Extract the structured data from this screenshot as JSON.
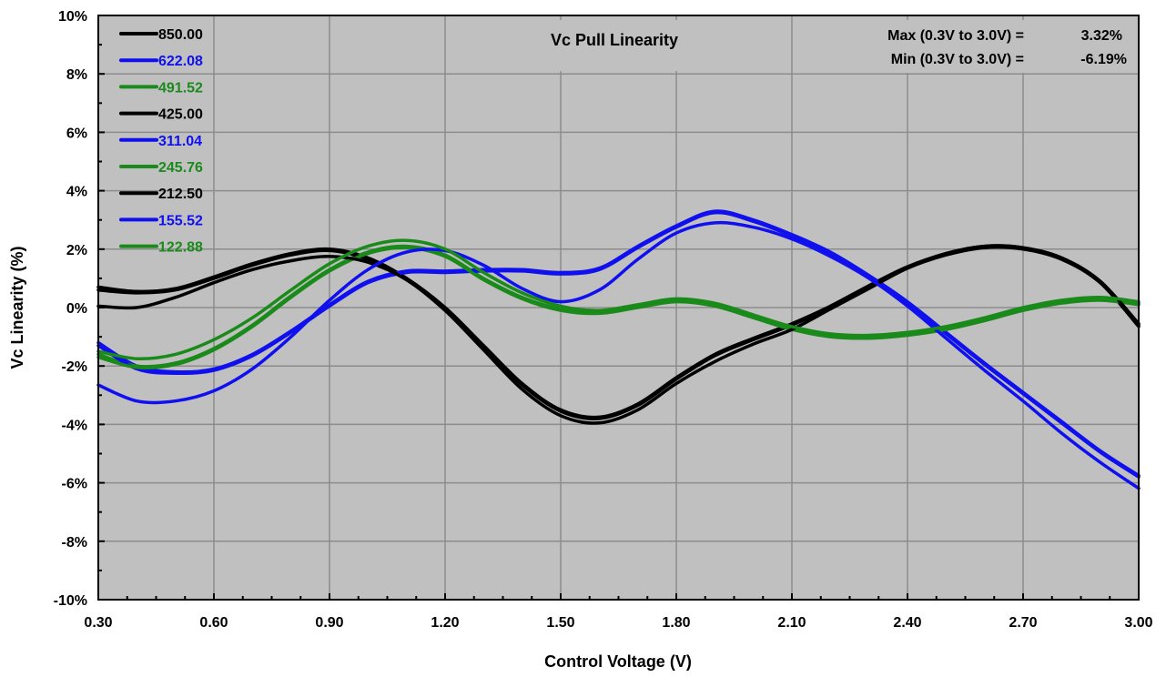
{
  "chart_data": {
    "type": "line",
    "title": "Vc Pull Linearity",
    "xlabel": "Control Voltage (V)",
    "ylabel": "Vc Linearity (%)",
    "xlim": [
      0.3,
      3.0
    ],
    "ylim": [
      -10,
      10
    ],
    "x_ticks": [
      "0.30",
      "0.60",
      "0.90",
      "1.20",
      "1.50",
      "1.80",
      "2.10",
      "2.40",
      "2.70",
      "3.00"
    ],
    "y_ticks": [
      "10%",
      "8%",
      "6%",
      "4%",
      "2%",
      "0%",
      "-2%",
      "-4%",
      "-6%",
      "-8%",
      "-10%"
    ],
    "grid": true,
    "legend_position": "top-left",
    "annotations": {
      "max_label": "Max (0.3V to 3.0V) =",
      "max_value": "3.32%",
      "min_label": "Min (0.3V to 3.0V) =",
      "min_value": "-6.19%"
    },
    "colors": {
      "plot_bg": "#c0c0c0",
      "black": "#000000",
      "blue": "#1010ee",
      "green": "#1a8a1a",
      "grid": "#8c8c8c"
    },
    "x": [
      0.3,
      0.4,
      0.5,
      0.6,
      0.7,
      0.8,
      0.9,
      1.0,
      1.1,
      1.2,
      1.3,
      1.4,
      1.5,
      1.6,
      1.7,
      1.8,
      1.9,
      2.0,
      2.1,
      2.2,
      2.3,
      2.4,
      2.5,
      2.6,
      2.7,
      2.8,
      2.9,
      3.0
    ],
    "series": [
      {
        "name": "850.00",
        "color": "#000000",
        "values": [
          0.7,
          0.55,
          0.65,
          1.05,
          1.5,
          1.85,
          2.0,
          1.7,
          1.0,
          0.0,
          -1.3,
          -2.6,
          -3.5,
          -3.75,
          -3.3,
          -2.4,
          -1.6,
          -1.05,
          -0.55,
          0.05,
          0.75,
          1.4,
          1.85,
          2.1,
          2.05,
          1.7,
          0.9,
          -0.6
        ]
      },
      {
        "name": "622.08",
        "color": "#1010ee",
        "values": [
          -1.2,
          -2.0,
          -2.2,
          -2.1,
          -1.6,
          -0.8,
          0.1,
          0.9,
          1.25,
          1.25,
          1.3,
          1.3,
          1.2,
          1.35,
          2.1,
          2.8,
          3.3,
          3.0,
          2.5,
          1.9,
          1.1,
          0.2,
          -0.85,
          -1.9,
          -2.9,
          -3.9,
          -4.9,
          -5.75
        ]
      },
      {
        "name": "491.52",
        "color": "#1a8a1a",
        "values": [
          -1.6,
          -2.0,
          -1.9,
          -1.4,
          -0.6,
          0.4,
          1.3,
          1.9,
          2.1,
          1.8,
          1.0,
          0.35,
          -0.05,
          -0.15,
          0.05,
          0.25,
          0.1,
          -0.3,
          -0.7,
          -0.95,
          -1.0,
          -0.9,
          -0.7,
          -0.4,
          -0.05,
          0.2,
          0.3,
          0.15
        ]
      },
      {
        "name": "425.00",
        "color": "#000000",
        "values": [
          0.6,
          0.5,
          0.6,
          1.0,
          1.45,
          1.8,
          1.95,
          1.65,
          0.95,
          -0.05,
          -1.35,
          -2.65,
          -3.55,
          -3.8,
          -3.35,
          -2.45,
          -1.65,
          -1.1,
          -0.6,
          0.0,
          0.7,
          1.35,
          1.8,
          2.05,
          2.0,
          1.65,
          0.85,
          -0.65
        ]
      },
      {
        "name": "311.04",
        "color": "#1010ee",
        "values": [
          -1.3,
          -2.1,
          -2.25,
          -2.15,
          -1.65,
          -0.85,
          0.05,
          0.85,
          1.2,
          1.2,
          1.25,
          1.25,
          1.15,
          1.3,
          2.05,
          2.75,
          3.25,
          2.95,
          2.45,
          1.85,
          1.05,
          0.15,
          -0.9,
          -1.95,
          -2.95,
          -3.95,
          -4.95,
          -5.8
        ]
      },
      {
        "name": "245.76",
        "color": "#1a8a1a",
        "values": [
          -1.7,
          -2.05,
          -1.95,
          -1.45,
          -0.65,
          0.35,
          1.25,
          1.85,
          2.05,
          1.75,
          0.95,
          0.3,
          -0.1,
          -0.2,
          0.0,
          0.2,
          0.05,
          -0.35,
          -0.75,
          -1.0,
          -1.05,
          -0.95,
          -0.75,
          -0.45,
          -0.1,
          0.15,
          0.25,
          0.1
        ]
      },
      {
        "name": "212.50",
        "color": "#000000",
        "values": [
          0.05,
          0.0,
          0.35,
          0.85,
          1.3,
          1.6,
          1.75,
          1.55,
          0.95,
          -0.1,
          -1.45,
          -2.8,
          -3.7,
          -3.95,
          -3.5,
          -2.6,
          -1.85,
          -1.25,
          -0.75,
          -0.05,
          0.65,
          1.35,
          1.85,
          2.1,
          2.05,
          1.7,
          0.9,
          -0.55
        ]
      },
      {
        "name": "155.52",
        "color": "#1010ee",
        "values": [
          -2.65,
          -3.2,
          -3.2,
          -2.85,
          -2.1,
          -1.0,
          0.25,
          1.3,
          1.9,
          1.95,
          1.45,
          0.65,
          0.2,
          0.6,
          1.65,
          2.55,
          2.9,
          2.75,
          2.35,
          1.75,
          1.0,
          0.05,
          -1.05,
          -2.15,
          -3.2,
          -4.3,
          -5.3,
          -6.19
        ]
      },
      {
        "name": "122.88",
        "color": "#1a8a1a",
        "values": [
          -1.5,
          -1.75,
          -1.6,
          -1.1,
          -0.35,
          0.6,
          1.5,
          2.1,
          2.3,
          2.0,
          1.2,
          0.5,
          0.05,
          -0.1,
          0.1,
          0.3,
          0.15,
          -0.25,
          -0.65,
          -0.9,
          -0.95,
          -0.85,
          -0.65,
          -0.35,
          0.0,
          0.25,
          0.35,
          0.2
        ]
      }
    ]
  }
}
